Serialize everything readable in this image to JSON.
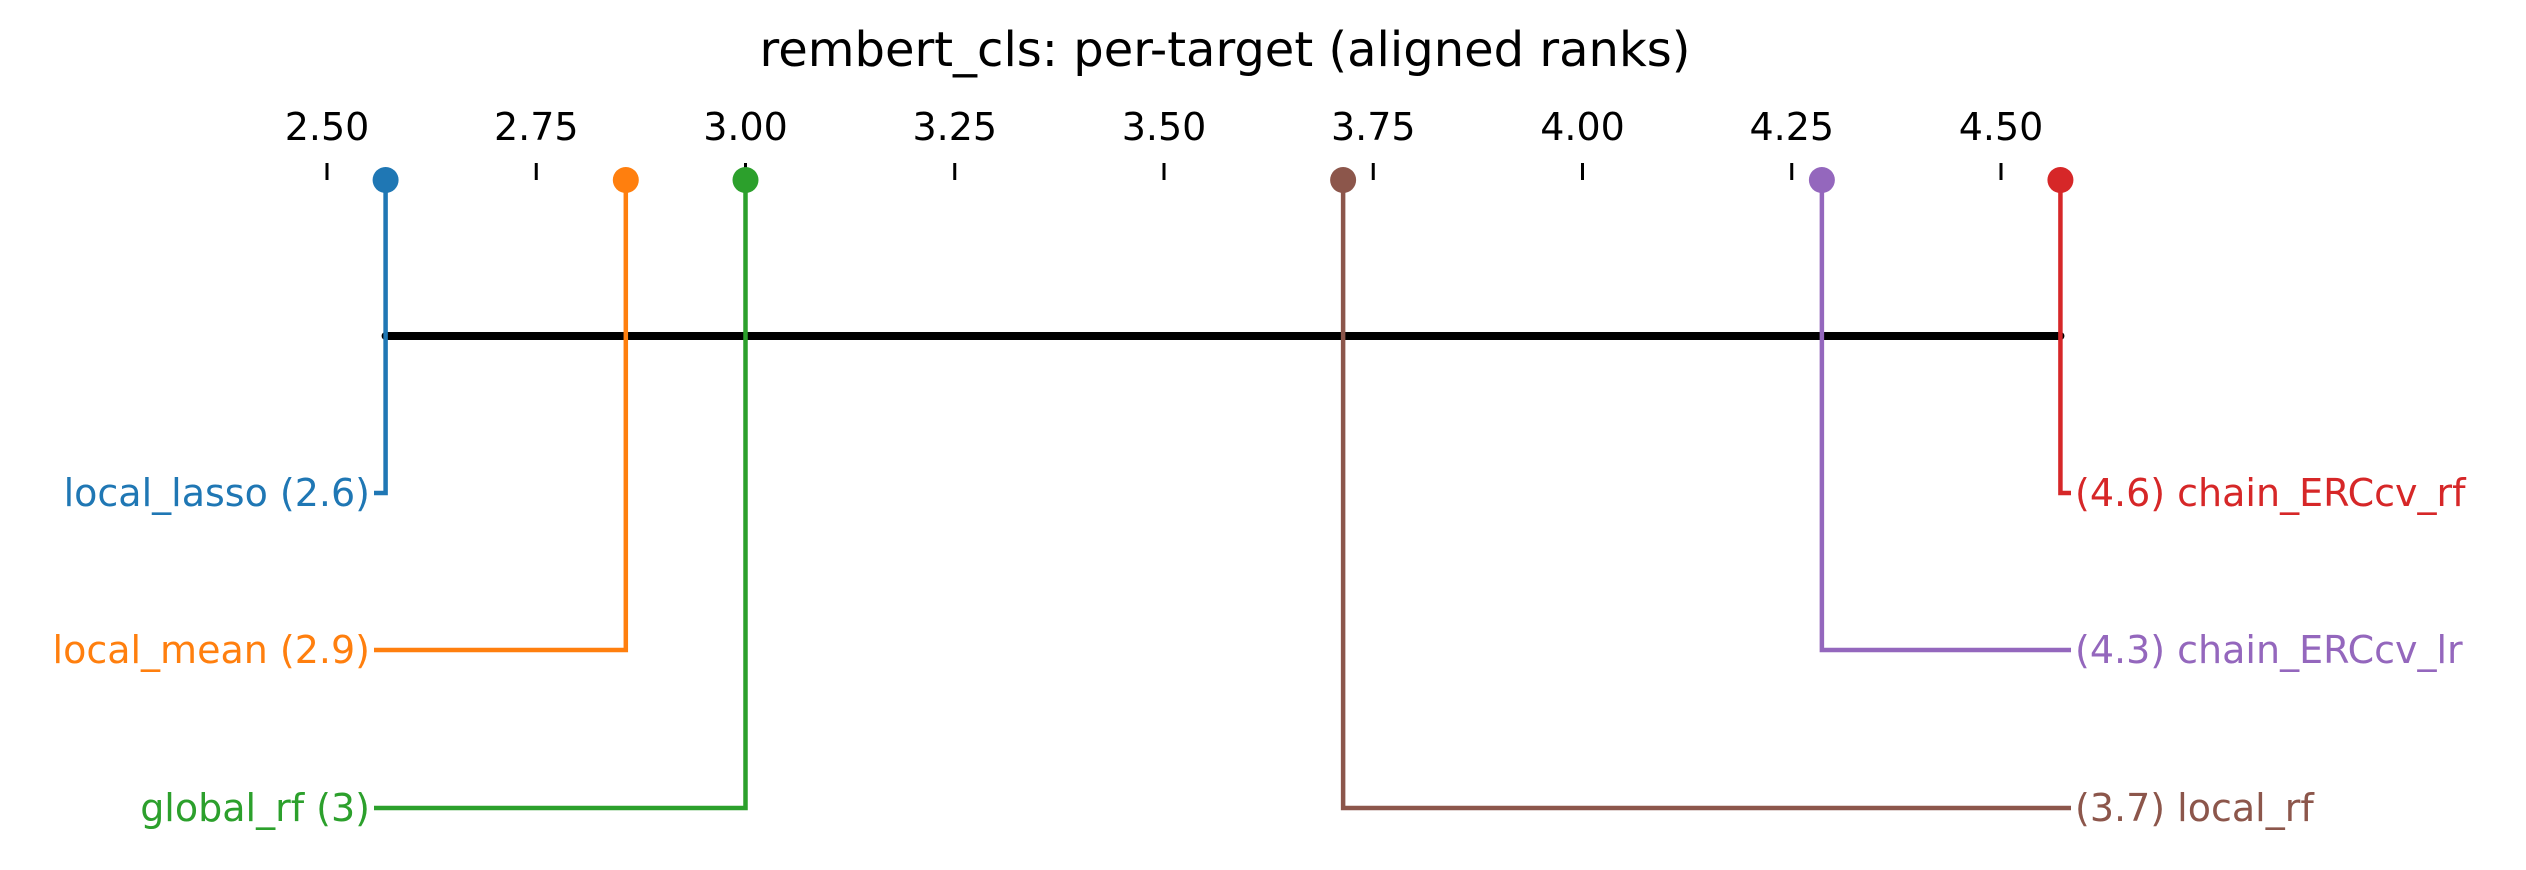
{
  "chart_data": {
    "type": "critical-difference",
    "title": "rembert_cls: per-target (aligned ranks)",
    "axis": {
      "range": [
        2.5,
        4.5
      ],
      "ticks": [
        2.5,
        2.75,
        3.0,
        3.25,
        3.5,
        3.75,
        4.0,
        4.25,
        4.5
      ],
      "tick_labels": [
        "2.50",
        "2.75",
        "3.00",
        "3.25",
        "3.50",
        "3.75",
        "4.00",
        "4.25",
        "4.50"
      ]
    },
    "methods": [
      {
        "name": "local_lasso",
        "rank": 2.57,
        "label": "local_lasso (2.6)",
        "color": "#1f77b4",
        "side": "left"
      },
      {
        "name": "local_mean",
        "rank": 2.857,
        "label": "local_mean (2.9)",
        "color": "#ff7f0e",
        "side": "left"
      },
      {
        "name": "global_rf",
        "rank": 3.0,
        "label": "global_rf (3)",
        "color": "#2ca02c",
        "side": "left"
      },
      {
        "name": "local_rf",
        "rank": 3.714,
        "label": "(3.7) local_rf",
        "color": "#8c564b",
        "side": "right"
      },
      {
        "name": "chain_ERCcv_lr",
        "rank": 4.286,
        "label": "(4.3) chain_ERCcv_lr",
        "color": "#9467bd",
        "side": "right"
      },
      {
        "name": "chain_ERCcv_rf",
        "rank": 4.571,
        "label": "(4.6) chain_ERCcv_rf",
        "color": "#d62728",
        "side": "right"
      }
    ],
    "cliques": [
      {
        "from": 2.57,
        "to": 4.571
      }
    ]
  }
}
